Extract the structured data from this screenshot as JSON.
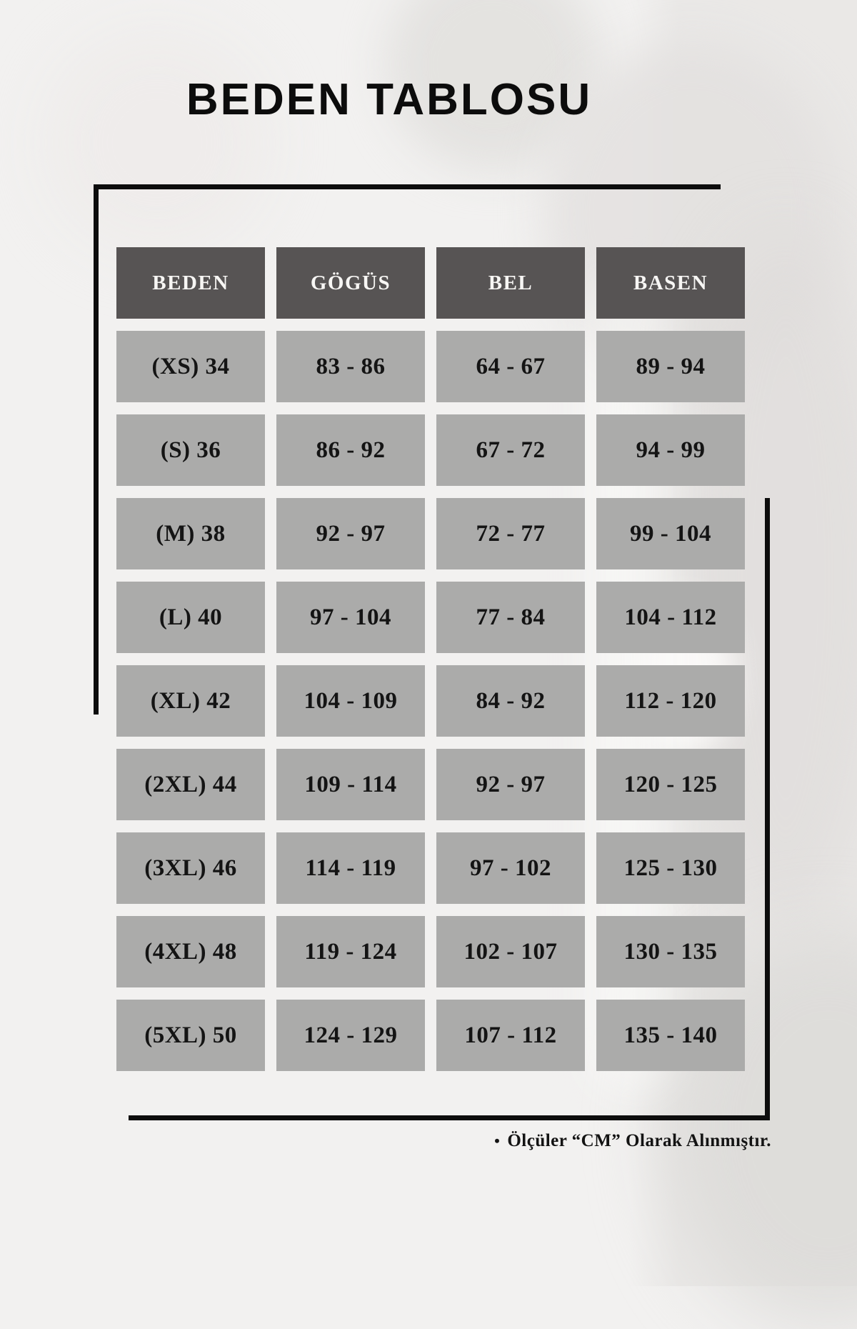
{
  "title": "BEDEN TABLOSU",
  "footnote": {
    "bullet": "•",
    "text": "Ölçüler “CM” Olarak Alınmıştır."
  },
  "chart_data": {
    "type": "table",
    "title": "BEDEN TABLOSU",
    "units": "CM",
    "columns": [
      "BEDEN",
      "GÖGÜS",
      "BEL",
      "BASEN"
    ],
    "rows": [
      [
        "(XS) 34",
        "83 - 86",
        "64 - 67",
        "89 - 94"
      ],
      [
        "(S) 36",
        "86 - 92",
        "67 - 72",
        "94 - 99"
      ],
      [
        "(M) 38",
        "92 - 97",
        "72 - 77",
        "99 - 104"
      ],
      [
        "(L) 40",
        "97 - 104",
        "77 - 84",
        "104 - 112"
      ],
      [
        "(XL) 42",
        "104 - 109",
        "84 - 92",
        "112 - 120"
      ],
      [
        "(2XL) 44",
        "109 - 114",
        "92 - 97",
        "120 - 125"
      ],
      [
        "(3XL) 46",
        "114 - 119",
        "97 - 102",
        "125 - 130"
      ],
      [
        "(4XL) 48",
        "119 - 124",
        "102 - 107",
        "130 - 135"
      ],
      [
        "(5XL) 50",
        "124 - 129",
        "107 - 112",
        "135 - 140"
      ]
    ]
  },
  "colors": {
    "background": "#f2f1f0",
    "header_bg": "#575454",
    "header_text": "#f7f6f4",
    "cell_bg": "#ababaa",
    "cell_text": "#141414",
    "frame": "#0d0d0d"
  }
}
